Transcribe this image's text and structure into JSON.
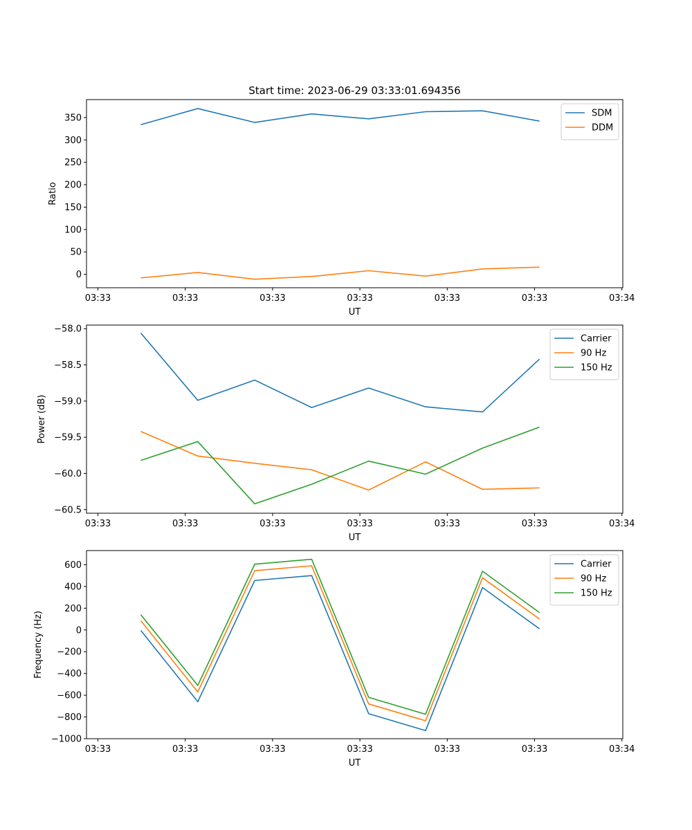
{
  "title": "Start time: 2023-06-29 03:33:01.694356",
  "chart_data": [
    {
      "type": "line",
      "x_tick_labels": [
        "03:33",
        "03:33",
        "03:33",
        "03:33",
        "03:33",
        "03:33",
        "03:34"
      ],
      "xlabel": "UT",
      "ylabel": "Ratio",
      "ylim": [
        -30,
        390
      ],
      "yticks": [
        0,
        50,
        100,
        150,
        200,
        250,
        300,
        350
      ],
      "legend_position": "upper right",
      "series": [
        {
          "name": "SDM",
          "color": "#1f77b4",
          "values": [
            334,
            370,
            339,
            358,
            347,
            363,
            365,
            342
          ]
        },
        {
          "name": "DDM",
          "color": "#ff7f0e",
          "values": [
            -8,
            4,
            -11,
            -5,
            8,
            -4,
            12,
            16
          ]
        }
      ]
    },
    {
      "type": "line",
      "x_tick_labels": [
        "03:33",
        "03:33",
        "03:33",
        "03:33",
        "03:33",
        "03:33",
        "03:34"
      ],
      "xlabel": "UT",
      "ylabel": "Power (dB)",
      "ylim": [
        -60.55,
        -57.95
      ],
      "yticks": [
        -60.5,
        -60.0,
        -59.5,
        -59.0,
        -58.5,
        -58.0
      ],
      "ytick_decimals": 1,
      "legend_position": "upper right",
      "series": [
        {
          "name": "Carrier",
          "color": "#1f77b4",
          "values": [
            -58.06,
            -58.99,
            -58.71,
            -59.09,
            -58.82,
            -59.08,
            -59.15,
            -58.42
          ]
        },
        {
          "name": "90 Hz",
          "color": "#ff7f0e",
          "values": [
            -59.42,
            -59.76,
            -59.86,
            -59.95,
            -60.23,
            -59.84,
            -60.22,
            -60.2
          ]
        },
        {
          "name": "150 Hz",
          "color": "#2ca02c",
          "values": [
            -59.82,
            -59.56,
            -60.42,
            -60.15,
            -59.83,
            -60.01,
            -59.65,
            -59.36
          ]
        }
      ]
    },
    {
      "type": "line",
      "x_tick_labels": [
        "03:33",
        "03:33",
        "03:33",
        "03:33",
        "03:33",
        "03:33",
        "03:34"
      ],
      "xlabel": "UT",
      "ylabel": "Frequency (Hz)",
      "ylim": [
        -1000,
        730
      ],
      "yticks": [
        -1000,
        -800,
        -600,
        -400,
        -200,
        0,
        200,
        400,
        600
      ],
      "legend_position": "upper right",
      "series": [
        {
          "name": "Carrier",
          "color": "#1f77b4",
          "values": [
            -5,
            -660,
            455,
            500,
            -770,
            -925,
            390,
            10
          ]
        },
        {
          "name": "90 Hz",
          "color": "#ff7f0e",
          "values": [
            85,
            -570,
            545,
            590,
            -680,
            -835,
            480,
            100
          ]
        },
        {
          "name": "150 Hz",
          "color": "#2ca02c",
          "values": [
            140,
            -510,
            605,
            650,
            -620,
            -775,
            540,
            160
          ]
        }
      ]
    }
  ]
}
